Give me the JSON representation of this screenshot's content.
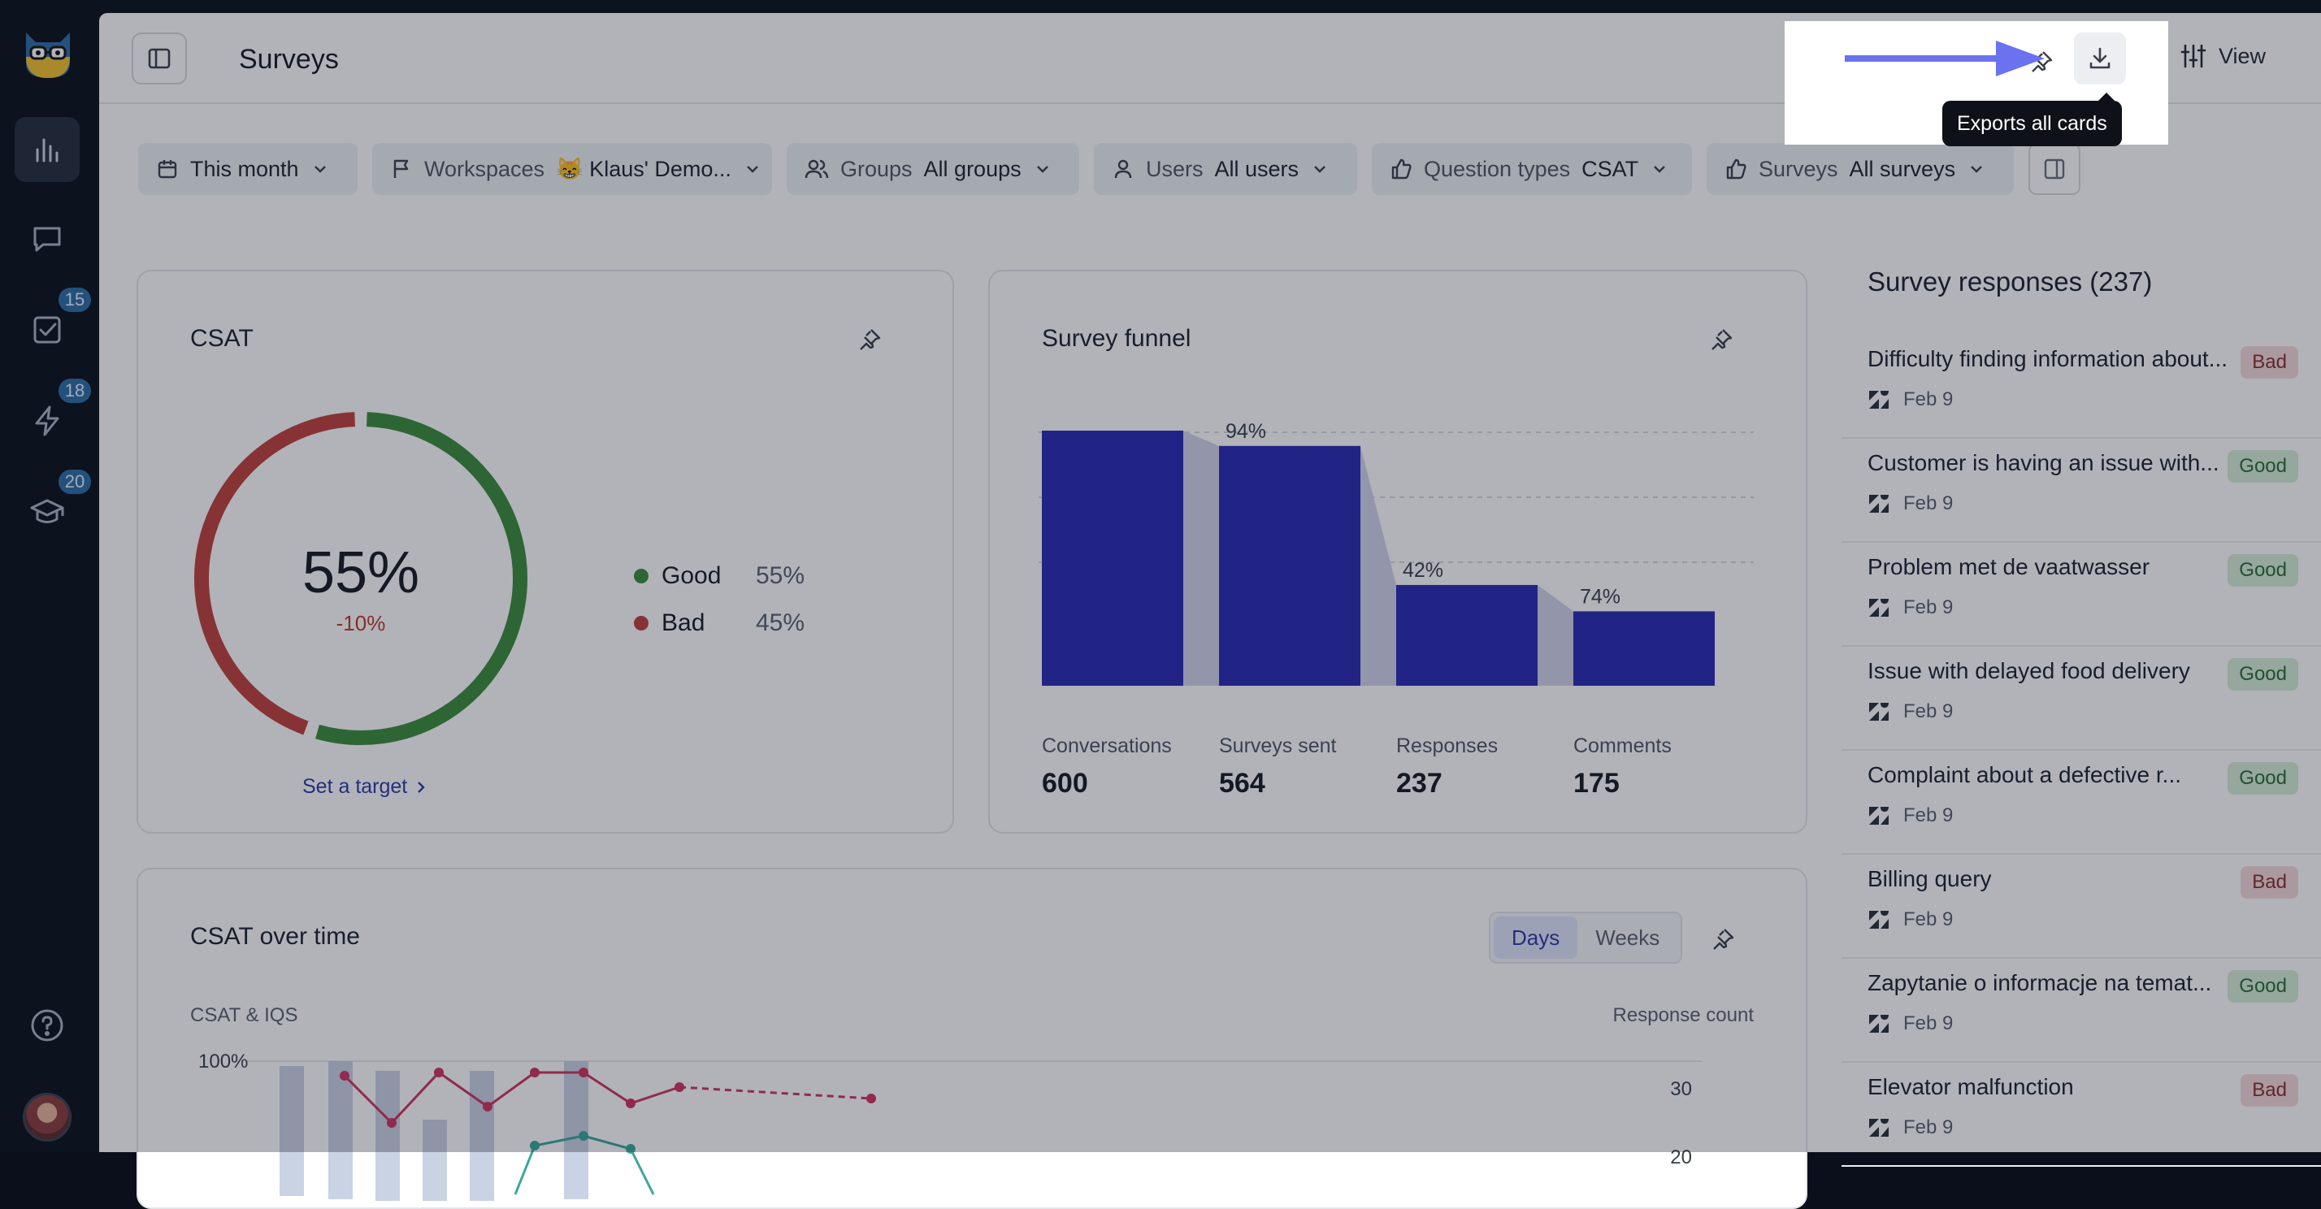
{
  "header": {
    "title": "Surveys",
    "view_label": "View",
    "tooltip": "Exports all cards"
  },
  "rail": {
    "badges": [
      "15",
      "18",
      "20"
    ],
    "icons": [
      "dashboard-icon",
      "conversations-icon",
      "tasks-icon",
      "autoqa-icon",
      "training-icon",
      "help-icon"
    ]
  },
  "filters": {
    "date": "This month",
    "workspaces_key": "Workspaces",
    "workspaces_value": "😸 Klaus' Demo...",
    "groups_key": "Groups",
    "groups_value": "All groups",
    "users_key": "Users",
    "users_value": "All users",
    "qtypes_key": "Question types",
    "qtypes_value": "CSAT",
    "surveys_key": "Surveys",
    "surveys_value": "All surveys"
  },
  "csat": {
    "title": "CSAT",
    "value": "55%",
    "delta": "-10%",
    "good_label": "Good",
    "good_value": "55%",
    "bad_label": "Bad",
    "bad_value": "45%",
    "good_fraction": 0.55,
    "target_link": "Set a target",
    "colors": {
      "good": "#3d8b3d",
      "bad": "#c0413c"
    }
  },
  "funnel": {
    "title": "Survey funnel",
    "stages": [
      {
        "label": "Conversations",
        "value": "600",
        "count": 600,
        "conversion": ""
      },
      {
        "label": "Surveys sent",
        "value": "564",
        "count": 564,
        "conversion": "94%"
      },
      {
        "label": "Responses",
        "value": "237",
        "count": 237,
        "conversion": "42%"
      },
      {
        "label": "Comments",
        "value": "175",
        "count": 175,
        "conversion": "74%"
      }
    ],
    "bar_color": "#2a2ab4"
  },
  "csat_over_time": {
    "title": "CSAT over time",
    "toggle": [
      "Days",
      "Weeks"
    ],
    "active_toggle": "Days",
    "left_axis_label": "CSAT & IQS",
    "right_axis_label": "Response count",
    "left_tick": "100%",
    "right_ticks": [
      "30",
      "20"
    ]
  },
  "responses": {
    "title": "Survey responses (237)",
    "items": [
      {
        "text": "Difficulty finding information about...",
        "date": "Feb 9",
        "rating": "Bad"
      },
      {
        "text": "Customer is having an issue with...",
        "date": "Feb 9",
        "rating": "Good"
      },
      {
        "text": "Problem met de vaatwasser",
        "date": "Feb 9",
        "rating": "Good"
      },
      {
        "text": "Issue with delayed food delivery",
        "date": "Feb 9",
        "rating": "Good"
      },
      {
        "text": "Complaint about a defective r...",
        "date": "Feb 9",
        "rating": "Good"
      },
      {
        "text": "Billing query",
        "date": "Feb 9",
        "rating": "Bad"
      },
      {
        "text": "Zapytanie o informacje na temat...",
        "date": "Feb 9",
        "rating": "Good"
      },
      {
        "text": "Elevator malfunction",
        "date": "Feb 9",
        "rating": "Bad"
      }
    ]
  }
}
